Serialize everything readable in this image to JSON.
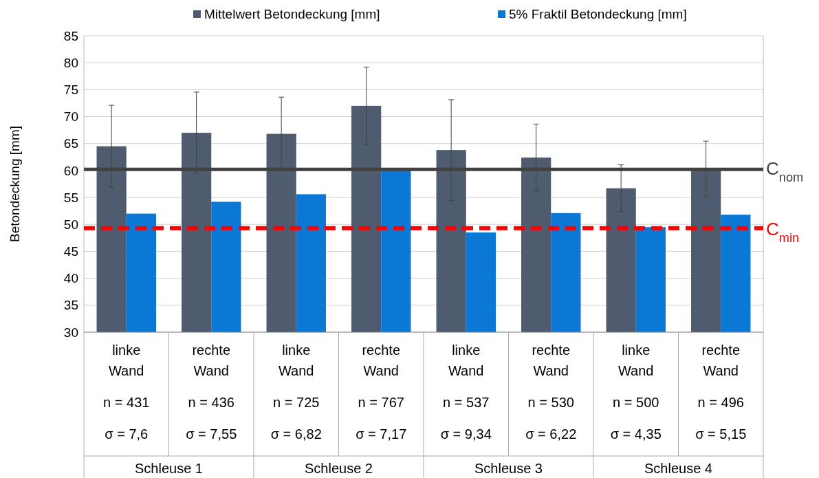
{
  "chart_data": {
    "type": "bar",
    "ylabel": "Betondeckung [mm]",
    "categories": [
      "linke\nWand\nn = 431\nσ = 7,6",
      "rechte\nWand\nn = 436\nσ = 7,55",
      "linke\nWand\nn = 725\nσ = 6,82",
      "rechte\nWand\nn = 767\nσ = 7,17",
      "linke\nWand\nn = 537\nσ = 9,34",
      "rechte\nWand\nn = 530\nσ = 6,22",
      "linke\nWand\nn = 500\nσ = 4,35",
      "rechte\nWand\nn = 496\nσ = 5,15"
    ],
    "series": [
      {
        "name": "Mittelwert Betondeckung [mm]",
        "color": "#4f5b6e",
        "values": [
          64.5,
          67,
          66.8,
          72,
          63.8,
          62.4,
          56.7,
          60.3
        ],
        "errors": [
          7.6,
          7.55,
          6.82,
          7.17,
          9.34,
          6.22,
          4.35,
          5.15
        ]
      },
      {
        "name": "5% Fraktil Betondeckung [mm]",
        "color": "#0b78d6",
        "values": [
          52,
          54.2,
          55.6,
          60,
          48.5,
          52.1,
          49.5,
          51.8
        ]
      }
    ],
    "ylim": [
      30,
      85
    ],
    "yticks": [
      30,
      35,
      40,
      45,
      50,
      55,
      60,
      65,
      70,
      75,
      80,
      85
    ],
    "grid": "y",
    "legend": "top",
    "ref_lines": [
      {
        "axis": "y",
        "value": 60.2,
        "label": "C$_{nom}$",
        "color": "#404040",
        "line_style": "solid"
      },
      {
        "axis": "y",
        "value": 49.3,
        "label": "C$_{min}$",
        "color": "#ff0000",
        "line_style": "dashed"
      }
    ],
    "annotations": [
      "Schleuse 1",
      "Schleuse 2",
      "Schleuse 3",
      "Schleuse 4"
    ]
  }
}
